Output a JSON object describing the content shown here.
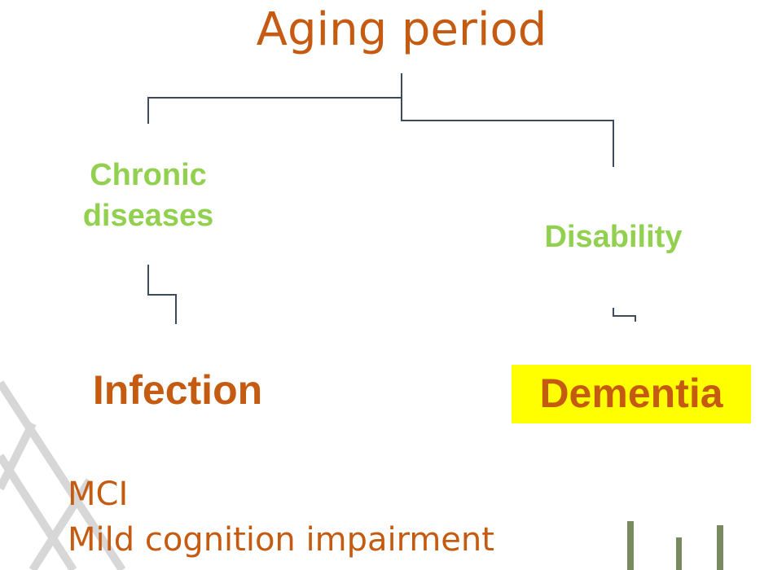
{
  "title": "Aging period",
  "nodes": [
    {
      "label": "Chronic diseases"
    },
    {
      "label": "Disability"
    },
    {
      "label": "Infection"
    },
    {
      "label": "Dementia"
    }
  ],
  "notes": [
    "MCI",
    "Mild cognition impairment"
  ]
}
